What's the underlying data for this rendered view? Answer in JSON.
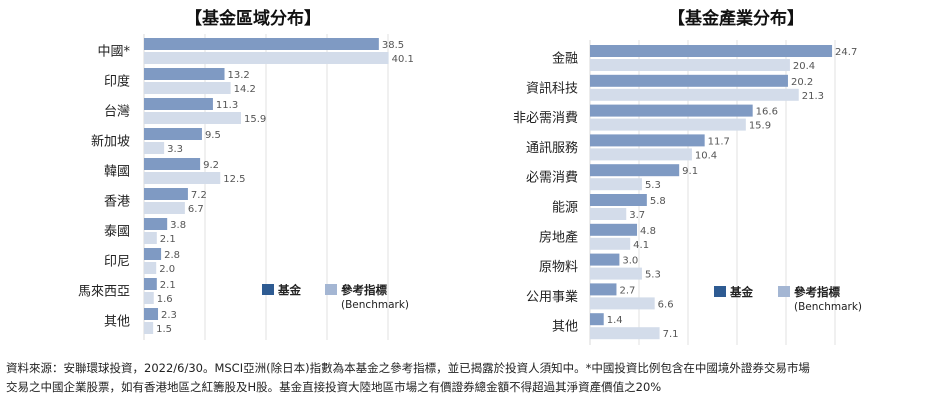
{
  "colors": {
    "fund": "#7F9AC3",
    "benchmark": "#D3DCEA",
    "legend_fund": "#2E5B92",
    "legend_benchmark": "#A4B6D3",
    "grid": "#d9d9d9"
  },
  "chart_data": [
    {
      "type": "bar",
      "orientation": "horizontal",
      "title": "【基金區域分布】",
      "categories": [
        "中國*",
        "印度",
        "台灣",
        "新加坡",
        "韓國",
        "香港",
        "泰國",
        "印尼",
        "馬來西亞",
        "其他"
      ],
      "series": [
        {
          "name": "基金",
          "values": [
            38.5,
            13.2,
            11.3,
            9.5,
            9.2,
            7.2,
            3.8,
            2.8,
            2.1,
            2.3
          ]
        },
        {
          "name": "參考指標 (Benchmark)",
          "values": [
            40.1,
            14.2,
            15.9,
            3.3,
            12.5,
            6.7,
            2.1,
            2.0,
            1.6,
            1.5
          ]
        }
      ],
      "xlim": [
        0,
        45
      ],
      "grid": true,
      "legend": {
        "fund": "基金",
        "benchmark_line1": "參考指標",
        "benchmark_line2": "(Benchmark)"
      }
    },
    {
      "type": "bar",
      "orientation": "horizontal",
      "title": "【基金產業分布】",
      "categories": [
        "金融",
        "資訊科技",
        "非必需消費",
        "通訊服務",
        "必需消費",
        "能源",
        "房地產",
        "原物料",
        "公用事業",
        "其他"
      ],
      "series": [
        {
          "name": "基金",
          "values": [
            24.7,
            20.2,
            16.6,
            11.7,
            9.1,
            5.8,
            4.8,
            3.0,
            2.7,
            1.4
          ]
        },
        {
          "name": "參考指標 (Benchmark)",
          "values": [
            20.4,
            21.3,
            15.9,
            10.4,
            5.3,
            3.7,
            4.1,
            5.3,
            6.6,
            7.1
          ]
        }
      ],
      "xlim": [
        0,
        30
      ],
      "grid": true,
      "legend": {
        "fund": "基金",
        "benchmark_line1": "參考指標",
        "benchmark_line2": "(Benchmark)"
      }
    }
  ],
  "footnote": {
    "line1": "資料來源：安聯環球投資，2022/6/30。MSCI亞洲(除日本)指數為本基金之參考指標，並已揭露於投資人須知中。*中國投資比例包含在中國境外證券交易市場",
    "line2": "交易之中國企業股票，如有香港地區之紅籌股及H股。基金直接投資大陸地區市場之有價證券總金額不得超過其淨資產價值之20%"
  }
}
